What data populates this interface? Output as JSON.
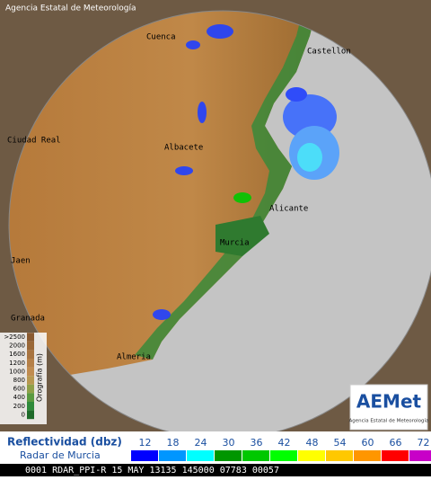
{
  "header": {
    "agency": "Agencia Estatal de Meteorología"
  },
  "cities": [
    "Cuenca",
    "Castellon",
    "Ciudad Real",
    "Albacete",
    "Alicante",
    "Murcia",
    "Jaen",
    "Granada",
    "Almeria"
  ],
  "orography": {
    "title": "Orografía (m)",
    "levels": [
      ">2500",
      "2000",
      "1600",
      "1200",
      "1000",
      "800",
      "600",
      "400",
      "200",
      "0"
    ]
  },
  "logo": {
    "name": "AEMet",
    "subtitle": "Agencia Estatal de Meteorología"
  },
  "legend": {
    "title": "Reflectividad (dbz)",
    "radar": "Radar de Murcia",
    "scale": [
      12,
      18,
      24,
      30,
      36,
      42,
      48,
      54,
      60,
      66,
      72
    ],
    "colors": [
      "#0000ff",
      "#0096ff",
      "#00ffff",
      "#009600",
      "#00c800",
      "#00ff00",
      "#ffff00",
      "#ffc800",
      "#ff9600",
      "#ff0000",
      "#c800c8"
    ]
  },
  "status": "0001 RDAR_PPI-R 15 MAY 13135 145000 07783 00057"
}
